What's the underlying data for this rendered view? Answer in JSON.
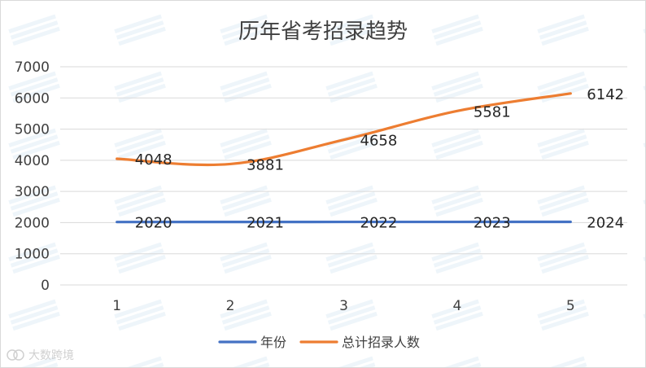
{
  "chart_data": {
    "type": "line",
    "title": "历年省考招录趋势",
    "xlabel": "",
    "ylabel": "",
    "categories": [
      "1",
      "2",
      "3",
      "4",
      "5"
    ],
    "ylim": [
      0,
      7000
    ],
    "yticks": [
      0,
      1000,
      2000,
      3000,
      4000,
      5000,
      6000,
      7000
    ],
    "grid": true,
    "legend_position": "bottom",
    "series": [
      {
        "name": "年份",
        "color": "#4472C4",
        "values": [
          2020,
          2021,
          2022,
          2023,
          2024
        ]
      },
      {
        "name": "总计招录人数",
        "color": "#ED7D31",
        "values": [
          4048,
          3881,
          4658,
          5581,
          6142
        ]
      }
    ]
  },
  "watermark": "大数跨境"
}
